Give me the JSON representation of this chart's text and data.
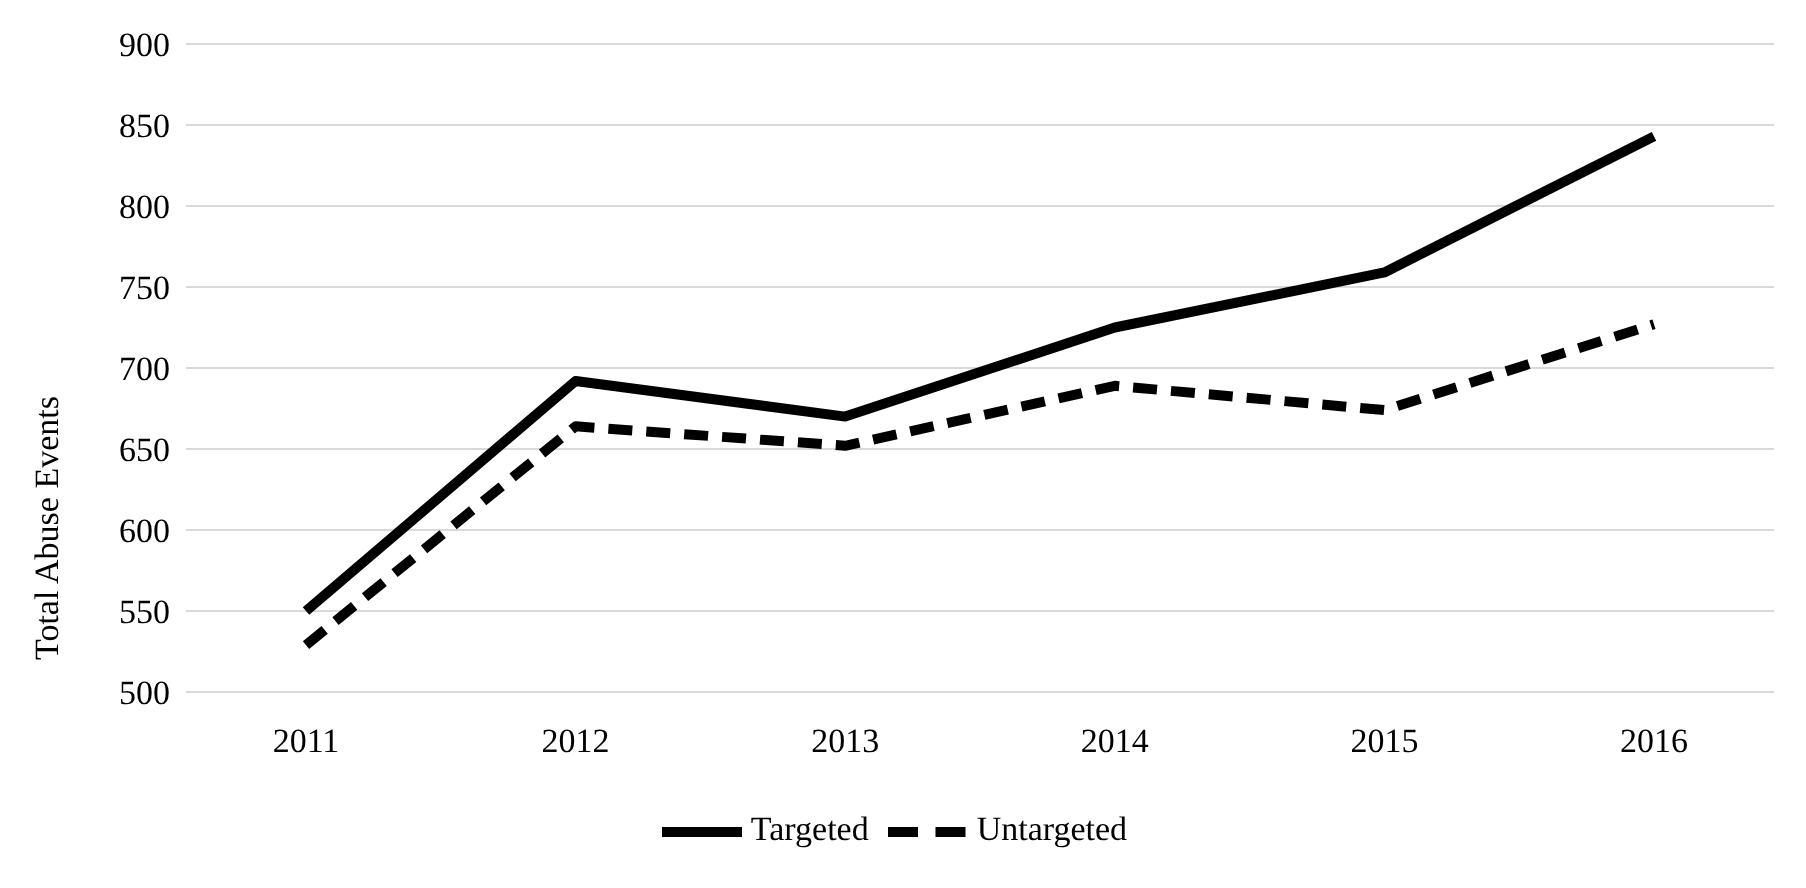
{
  "chart_data": {
    "type": "line",
    "ylabel": "Total Abuse Events",
    "categories": [
      "2011",
      "2012",
      "2013",
      "2014",
      "2015",
      "2016"
    ],
    "series": [
      {
        "name": "Targeted",
        "color": "#000000",
        "line_style": "solid",
        "values": [
          550,
          692,
          670,
          725,
          759,
          843
        ]
      },
      {
        "name": "Untargeted",
        "color": "#000000",
        "line_style": "dashed",
        "values": [
          529,
          664,
          652,
          689,
          674,
          727
        ]
      }
    ],
    "ylim": [
      500,
      900
    ],
    "yticks": [
      500,
      550,
      600,
      650,
      700,
      750,
      800,
      850,
      900
    ],
    "grid": "y",
    "legend": "bottom",
    "marker": "none"
  }
}
